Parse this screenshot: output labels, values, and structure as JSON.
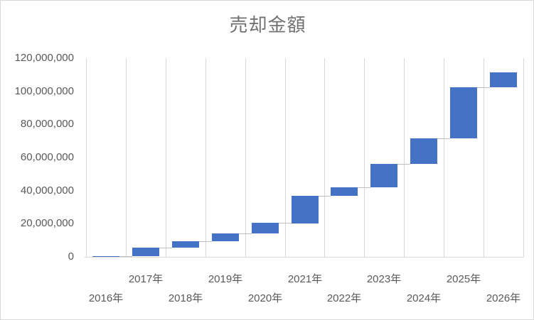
{
  "chart": {
    "title": "売却金額"
  },
  "chart_data": {
    "type": "bar",
    "subtype": "waterfall",
    "title": "売却金額",
    "xlabel": "",
    "ylabel": "",
    "categories": [
      "2016年",
      "2017年",
      "2018年",
      "2019年",
      "2020年",
      "2021年",
      "2022年",
      "2023年",
      "2024年",
      "2025年",
      "2026年"
    ],
    "cumulative_totals": [
      300000,
      5500000,
      9300000,
      14000000,
      20500000,
      37000000,
      42000000,
      56000000,
      71500000,
      102500000,
      111500000
    ],
    "increments": [
      300000,
      5200000,
      3800000,
      4700000,
      6500000,
      16500000,
      5000000,
      14000000,
      15500000,
      31000000,
      9000000
    ],
    "ylim": [
      0,
      120000000
    ],
    "ytick_step": 20000000,
    "ytick_labels": [
      "0",
      "20,000,000",
      "40,000,000",
      "60,000,000",
      "80,000,000",
      "100,000,000",
      "120,000,000"
    ],
    "grid": "vertical-only",
    "legend": "none",
    "x_labels_staggered": true,
    "colors": {
      "bar": "#4472C4",
      "gridline": "#D9D9D9",
      "axis_line": "#D9D9D9",
      "connector": "#BFBFBF",
      "tick_text": "#595959",
      "title_text": "#737070",
      "chart_border": "#D9D9D9"
    }
  }
}
